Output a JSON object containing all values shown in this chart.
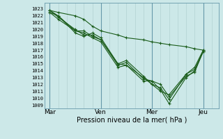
{
  "background_color": "#cce8e8",
  "grid_color": "#aacccc",
  "line_color": "#1a5c1a",
  "marker_color": "#1a5c1a",
  "ylabel_ticks": [
    1009,
    1010,
    1011,
    1012,
    1013,
    1014,
    1015,
    1016,
    1017,
    1018,
    1019,
    1020,
    1021,
    1022,
    1023
  ],
  "ylim": [
    1008.5,
    1023.9
  ],
  "xlabel": "Pression niveau de la mer( hPa )",
  "xtick_labels": [
    "Mar",
    "Ven",
    "Mer",
    "Jeu"
  ],
  "xtick_positions": [
    0,
    3,
    6,
    9
  ],
  "series": [
    [
      1022.8,
      1021.8,
      1020.0,
      1019.2,
      1019.2,
      1018.5,
      1014.8,
      1015.2,
      1012.8,
      1012.5,
      1011.2,
      1009.2,
      1013.0,
      1014.0,
      1016.8
    ],
    [
      1022.5,
      1022.0,
      1019.5,
      1019.0,
      1019.5,
      1018.8,
      1015.0,
      1015.5,
      1013.2,
      1012.0,
      1011.5,
      1009.8,
      1013.5,
      1014.5,
      1017.0
    ],
    [
      1022.5,
      1021.5,
      1019.8,
      1019.5,
      1018.8,
      1018.2,
      1014.5,
      1014.8,
      1012.5,
      1012.5,
      1012.0,
      1010.2,
      1013.2,
      1013.8,
      1016.8
    ],
    [
      1022.8,
      1022.0,
      1019.8,
      1019.8,
      1019.0,
      1018.5,
      1015.0,
      1014.8,
      1013.0,
      1012.0,
      1011.0,
      1010.5,
      1013.5,
      1014.2,
      1016.8
    ],
    [
      1022.8,
      1022.5,
      1022.0,
      1021.5,
      1020.5,
      1019.8,
      1019.2,
      1018.8,
      1018.5,
      1018.2,
      1018.0,
      1017.8,
      1017.5,
      1017.2,
      1017.0
    ]
  ],
  "x_vals": [
    0,
    0.5,
    1.5,
    2.0,
    2.5,
    3.0,
    4.0,
    4.5,
    5.5,
    6.0,
    6.5,
    7.0,
    8.0,
    8.5,
    9.0
  ]
}
